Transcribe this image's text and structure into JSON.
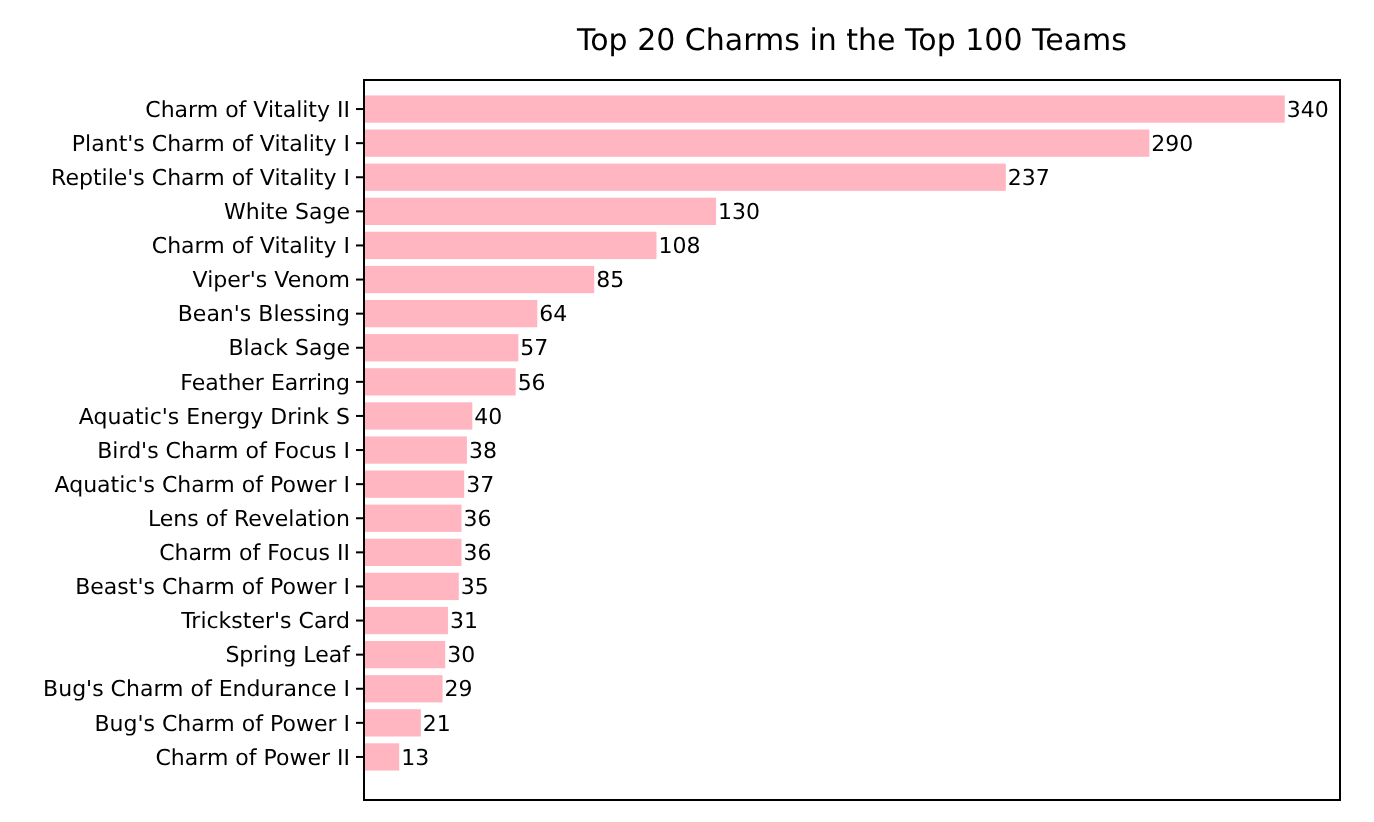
{
  "chart_data": {
    "type": "bar",
    "orientation": "horizontal",
    "title": "Top 20 Charms in the Top 100 Teams",
    "categories": [
      "Charm of Vitality II",
      "Plant's Charm of Vitality I",
      "Reptile's Charm of Vitality I",
      "White Sage",
      "Charm of Vitality I",
      "Viper's Venom",
      "Bean's Blessing",
      "Black Sage",
      "Feather Earring",
      "Aquatic's Energy Drink S",
      "Bird's Charm of Focus I",
      "Aquatic's Charm of Power I",
      "Lens of Revelation",
      "Charm of Focus II",
      "Beast's Charm of Power I",
      "Trickster's Card",
      "Spring Leaf",
      "Bug's Charm of Endurance I",
      "Bug's Charm of Power I",
      "Charm of Power II"
    ],
    "values": [
      340,
      290,
      237,
      130,
      108,
      85,
      64,
      57,
      56,
      40,
      38,
      37,
      36,
      36,
      35,
      31,
      30,
      29,
      21,
      13
    ],
    "color": "#ffb6c1",
    "data_labels": true,
    "tick_labels": "y"
  }
}
